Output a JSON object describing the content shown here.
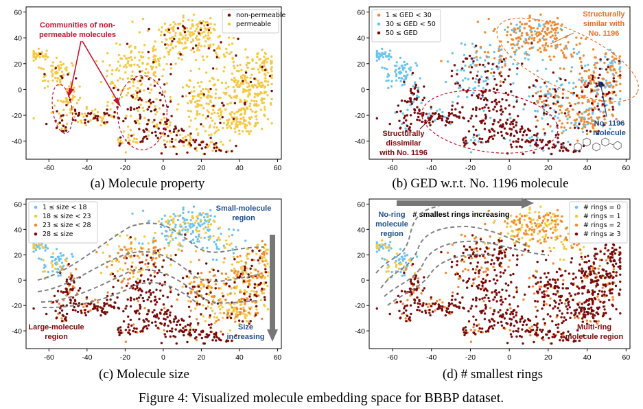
{
  "figure_caption": "Figure 4: Visualized molecule embedding space for BBBP dataset.",
  "colors": {
    "yellow": "#f5c842",
    "orange": "#ef8a32",
    "sky": "#6cc3ee",
    "maroon": "#7a0a0a",
    "red": "#c8102e",
    "annot_orange": "#e8702a",
    "annot_blue": "#1d4e8f",
    "dash_gray": "#808080"
  },
  "chart_data": [
    {
      "type": "scatter",
      "caption": "(a) Molecule property",
      "xticks": [
        -60,
        -40,
        -20,
        0,
        20,
        40,
        60
      ],
      "yticks": [
        60,
        40,
        20,
        0,
        -20,
        -40
      ],
      "xlim": [
        -72,
        62
      ],
      "ylim": [
        -54,
        64
      ],
      "legend_position": "top-right",
      "series": [
        {
          "name": "non-permeable",
          "color": "#7a0a0a"
        },
        {
          "name": "permeable",
          "color": "#f5c842"
        }
      ],
      "annotations": [
        {
          "text": "Communities of non-",
          "color": "#c8102e"
        },
        {
          "text": "permeable molecules",
          "color": "#c8102e"
        }
      ]
    },
    {
      "type": "scatter",
      "caption": "(b) GED w.r.t. No. 1196 molecule",
      "xticks": [
        -60,
        -40,
        -20,
        0,
        20,
        40,
        60
      ],
      "yticks": [
        60,
        40,
        20,
        0,
        -20,
        -40
      ],
      "xlim": [
        -72,
        62
      ],
      "ylim": [
        -54,
        64
      ],
      "legend_position": "top-left",
      "series": [
        {
          "name": "1 ≤ GED < 30",
          "color": "#ef8a32"
        },
        {
          "name": "30 ≤ GED < 50",
          "color": "#6cc3ee"
        },
        {
          "name": "50 ≤ GED",
          "color": "#7a0a0a"
        }
      ],
      "annotations": [
        {
          "text": "Structurally",
          "color": "#e8702a"
        },
        {
          "text": "similar with",
          "color": "#e8702a"
        },
        {
          "text": "No. 1196",
          "color": "#e8702a"
        },
        {
          "text": "Structurally",
          "color": "#7a0a0a"
        },
        {
          "text": "dissimilar",
          "color": "#7a0a0a"
        },
        {
          "text": "with No. 1196",
          "color": "#7a0a0a"
        },
        {
          "text": "No. 1196",
          "color": "#1d4e8f"
        },
        {
          "text": "molecule",
          "color": "#1d4e8f"
        }
      ],
      "highlight_point": {
        "x": 47,
        "y": 4
      }
    },
    {
      "type": "scatter",
      "caption": "(c) Molecule size",
      "xticks": [
        -60,
        -40,
        -20,
        0,
        20,
        40,
        60
      ],
      "yticks": [
        60,
        40,
        20,
        0,
        -20,
        -40
      ],
      "xlim": [
        -72,
        62
      ],
      "ylim": [
        -54,
        64
      ],
      "legend_position": "top-left",
      "series": [
        {
          "name": "1 ≤ size < 18",
          "color": "#6cc3ee"
        },
        {
          "name": "18 ≤ size < 23",
          "color": "#f5c842"
        },
        {
          "name": "23 ≤ size < 28",
          "color": "#ef8a32"
        },
        {
          "name": "28 ≤ size",
          "color": "#7a0a0a"
        }
      ],
      "annotations": [
        {
          "text": "Small-molecule",
          "color": "#1d4e8f"
        },
        {
          "text": "region",
          "color": "#1d4e8f"
        },
        {
          "text": "Large-molecule",
          "color": "#7a0a0a"
        },
        {
          "text": "region",
          "color": "#7a0a0a"
        },
        {
          "text": "Size",
          "color": "#1d4e8f"
        },
        {
          "text": "increasing",
          "color": "#1d4e8f"
        }
      ]
    },
    {
      "type": "scatter",
      "caption": "(d) # smallest rings",
      "xticks": [
        -60,
        -40,
        -20,
        0,
        20,
        40,
        60
      ],
      "yticks": [
        60,
        40,
        20,
        0,
        -20,
        -40
      ],
      "xlim": [
        -72,
        62
      ],
      "ylim": [
        -54,
        64
      ],
      "legend_position": "top-right",
      "series": [
        {
          "name": "# rings = 0",
          "color": "#6cc3ee"
        },
        {
          "name": "# rings = 1",
          "color": "#f5c842"
        },
        {
          "name": "# rings = 2",
          "color": "#ef8a32"
        },
        {
          "name": "# rings ≥ 3",
          "color": "#7a0a0a"
        }
      ],
      "annotations": [
        {
          "text": "No-ring",
          "color": "#1d4e8f"
        },
        {
          "text": "molecule",
          "color": "#1d4e8f"
        },
        {
          "text": "region",
          "color": "#1d4e8f"
        },
        {
          "text": "# smallest rings increasing",
          "color": "#000000"
        },
        {
          "text": "Multi-ring",
          "color": "#7a0a0a"
        },
        {
          "text": "molecule region",
          "color": "#7a0a0a"
        }
      ]
    }
  ]
}
